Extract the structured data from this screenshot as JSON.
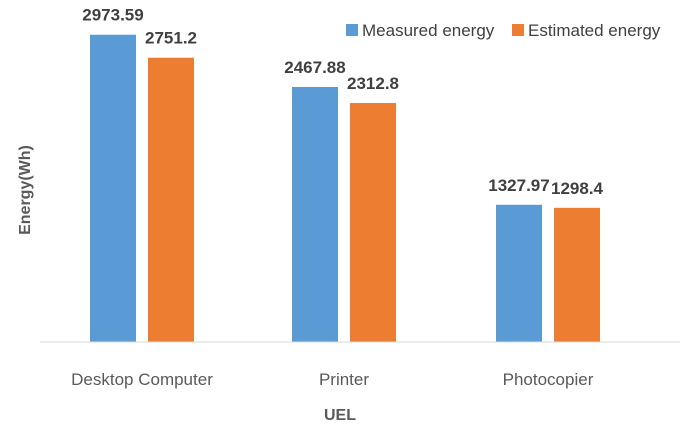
{
  "chart_data": {
    "type": "bar",
    "title": "",
    "xlabel": "UEL",
    "ylabel": "Energy(Wh)",
    "categories": [
      "Desktop Computer",
      "Printer",
      "Photocopier"
    ],
    "series": [
      {
        "name": "Measured energy",
        "color": "#5B9BD5",
        "values": [
          2973.59,
          2467.88,
          1327.97
        ],
        "labels": [
          "2973.59",
          "2467.88",
          "1327.97"
        ]
      },
      {
        "name": "Estimated energy",
        "color": "#ED7D31",
        "values": [
          2751.2,
          2312.8,
          1298.4
        ],
        "labels": [
          "2751.2",
          "2312.8",
          "1298.4"
        ]
      }
    ],
    "ylim": [
      0,
      3000
    ],
    "grid": false,
    "legend": "top-right"
  }
}
